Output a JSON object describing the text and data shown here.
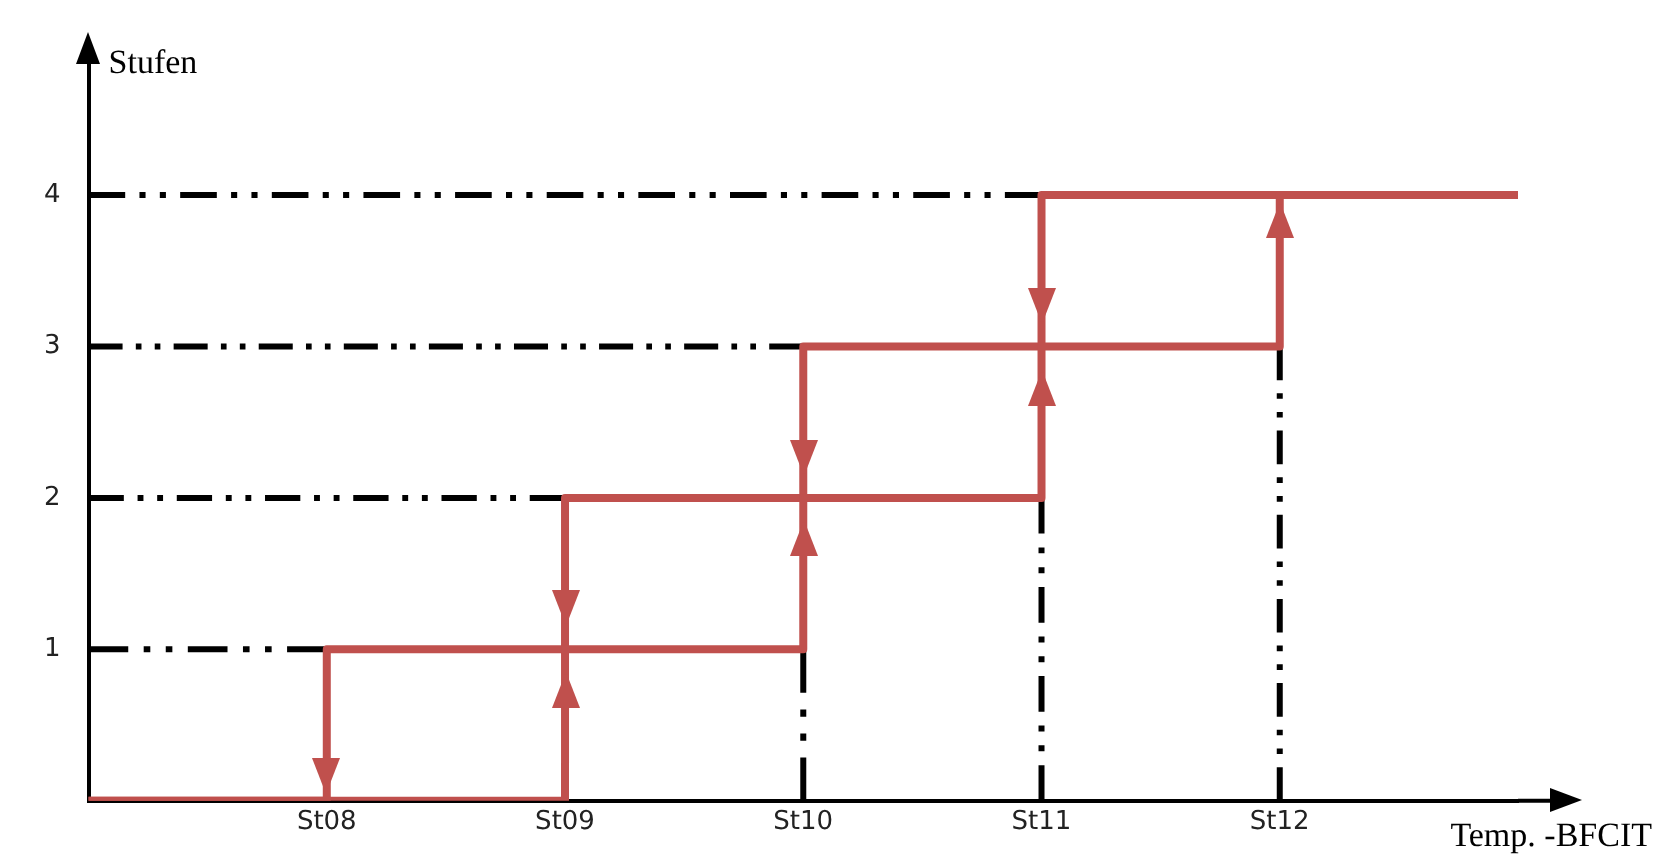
{
  "chart_data": {
    "type": "line",
    "xlabel": "Temp. -BFCIT",
    "ylabel": "Stufen",
    "ylim": [
      0,
      5
    ],
    "categories": [
      null,
      "St08",
      "St09",
      "St10",
      "St11",
      "St12",
      null
    ],
    "yticks": [
      1,
      2,
      3,
      4
    ],
    "grid": false,
    "legend": false,
    "marker": "none",
    "series": [
      {
        "color": "#000000",
        "line_style": "dashed",
        "values": [
          1,
          1,
          null,
          null,
          null,
          null,
          null
        ]
      },
      {
        "color": "#000000",
        "line_style": "dashed",
        "values": [
          2,
          2,
          2,
          null,
          null,
          null,
          null
        ]
      },
      {
        "color": "#000000",
        "line_style": "dashed",
        "values": [
          3,
          3,
          3,
          3,
          null,
          null,
          null
        ]
      },
      {
        "color": "#000000",
        "line_style": "dashed",
        "values": [
          4,
          4,
          4,
          4,
          4,
          null,
          null
        ]
      },
      {
        "color": "#000000",
        "line_style": "dashed",
        "x": [
          "St10",
          "St10"
        ],
        "values": [
          0,
          1
        ]
      },
      {
        "color": "#000000",
        "line_style": "dashed",
        "x": [
          "St11",
          "St11"
        ],
        "values": [
          0,
          2
        ]
      },
      {
        "color": "#000000",
        "line_style": "dashed",
        "x": [
          "St12",
          "St12"
        ],
        "values": [
          0,
          3
        ]
      },
      {
        "type": "step",
        "color": "#c0504d",
        "line_style": "solid",
        "values": [
          0,
          0,
          1,
          2,
          3,
          4,
          4
        ]
      },
      {
        "type": "step",
        "color": "#c0504d",
        "line_style": "solid",
        "values": [
          0,
          1,
          2,
          3,
          4,
          4,
          4
        ]
      }
    ]
  }
}
